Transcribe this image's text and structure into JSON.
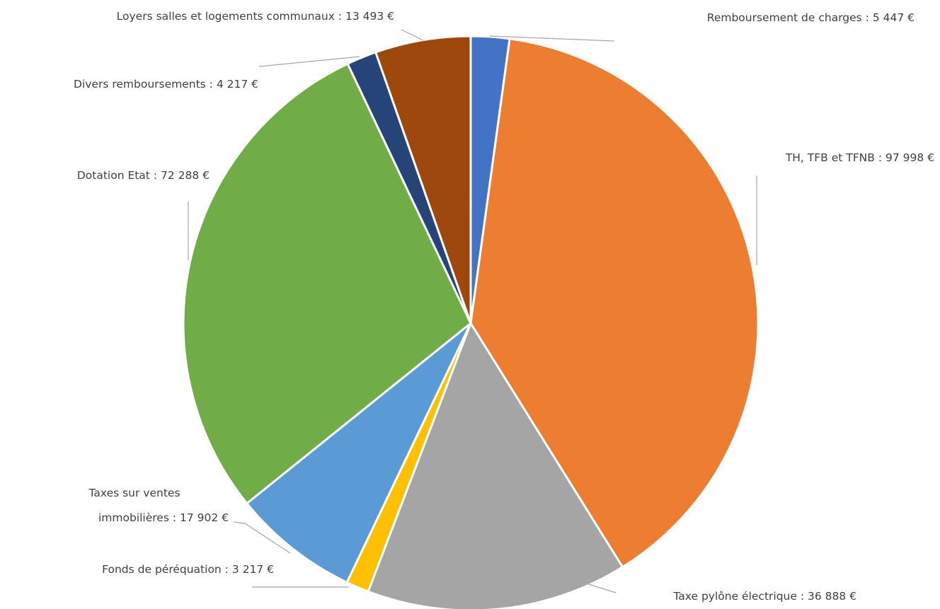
{
  "chart_data": {
    "type": "pie",
    "title": "",
    "slices": [
      {
        "label": "Remboursement de charges",
        "value": 5447,
        "value_text": "5 447 €",
        "color": "#4472C4"
      },
      {
        "label": "TH, TFB et TFNB",
        "value": 97998,
        "value_text": "97 998 €",
        "color": "#ED7D31"
      },
      {
        "label": "Taxe pylône électrique",
        "value": 36888,
        "value_text": "36 888 €",
        "color": "#A5A5A5"
      },
      {
        "label": "Fonds de péréquation",
        "value": 3217,
        "value_text": "3 217 €",
        "color": "#FFC000"
      },
      {
        "label": "Taxes sur ventes immobilières",
        "value": 17902,
        "value_text": "17 902 €",
        "color": "#5B9BD5"
      },
      {
        "label": "Dotation Etat",
        "value": 72288,
        "value_text": "72 288 €",
        "color": "#70AD47"
      },
      {
        "label": "Divers remboursements",
        "value": 4217,
        "value_text": "4 217 €",
        "color": "#264478"
      },
      {
        "label": "Loyers salles et logements communaux",
        "value": 13493,
        "value_text": "13 493 €",
        "color": "#9E480E"
      }
    ],
    "data_labels": [
      "Remboursement de charges :  5 447 €",
      "TH, TFB et TFNB :  97 998 €",
      "Taxe pylône électrique : 36 888 €",
      "Fonds de péréquation : 3 217 €",
      "Taxes sur ventes",
      "immobilières : 17 902 €",
      "Dotation Etat :  72 288 €",
      "Divers remboursements : 4 217 €",
      "Loyers salles et logements communaux :  13 493 €"
    ],
    "legend": "none",
    "start_angle": "top",
    "direction": "clockwise"
  }
}
